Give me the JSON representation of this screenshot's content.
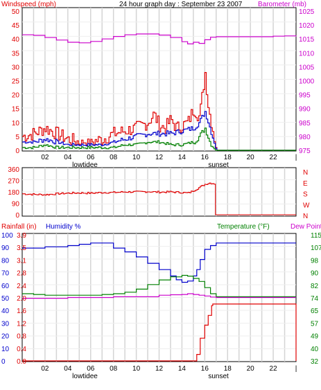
{
  "header": {
    "left": "Windspeed (mph)",
    "center": "24 hour graph day : September 23 2007",
    "right": "Barometer (mb)"
  },
  "colors": {
    "red": "#e00000",
    "blue": "#0000cc",
    "green": "#008000",
    "magenta": "#cc00cc",
    "grid": "#d4d4d4"
  },
  "chart_data": [
    {
      "type": "line",
      "x_ticks": [
        "02",
        "04",
        "06",
        "08",
        "10",
        "12",
        "14",
        "16",
        "18",
        "20",
        "22",
        "|"
      ],
      "x_markers": [
        "lowtidee",
        "sunset"
      ],
      "y_left": {
        "label": "Windspeed (mph)",
        "ticks": [
          0,
          5,
          10,
          15,
          20,
          25,
          30,
          35,
          40,
          45,
          50
        ],
        "range": [
          0,
          50
        ]
      },
      "y_right": {
        "label": "Barometer (mb)",
        "ticks": [
          975,
          980,
          985,
          990,
          995,
          1000,
          1005,
          1010,
          1015,
          1020,
          1025
        ],
        "range": [
          975,
          1025
        ]
      },
      "series": [
        {
          "axis": "right",
          "color": "magenta",
          "x": [
            0,
            1,
            2,
            3,
            4,
            5,
            6,
            7,
            8,
            9,
            10,
            11,
            12,
            13,
            14,
            14.5,
            15,
            15.5,
            16,
            16.5,
            17,
            18,
            19,
            20,
            21,
            22,
            23,
            24
          ],
          "y": [
            1016.5,
            1016.3,
            1015.5,
            1014.6,
            1013.8,
            1013.6,
            1014.1,
            1015.0,
            1015.9,
            1016.5,
            1016.8,
            1016.8,
            1016.4,
            1015.5,
            1014.0,
            1013.2,
            1013.8,
            1013.4,
            1014.7,
            1015.6,
            1015.8,
            1015.8,
            1015.8,
            1015.8,
            1015.8,
            1016.0,
            1016.1,
            1015.9
          ]
        },
        {
          "axis": "left",
          "color": "red",
          "x": [
            0,
            1,
            2,
            3,
            4,
            5,
            6,
            7,
            8,
            9,
            10,
            11,
            11.5,
            12,
            12.5,
            13,
            13.5,
            14,
            14.5,
            15,
            15.5,
            15.7,
            16,
            16.3,
            16.6,
            17,
            18,
            24
          ],
          "y": [
            5,
            6,
            8,
            6,
            4,
            3,
            3,
            4,
            6,
            7,
            8,
            10,
            13,
            9,
            8,
            11,
            8,
            9,
            10,
            15,
            12,
            18,
            28,
            15,
            9,
            0,
            0,
            0
          ]
        },
        {
          "axis": "left",
          "color": "blue",
          "x": [
            0,
            1,
            2,
            3,
            4,
            5,
            6,
            7,
            8,
            9,
            10,
            11,
            12,
            13,
            14,
            15,
            15.5,
            16,
            16.5,
            17,
            18,
            24
          ],
          "y": [
            3,
            3,
            4,
            3,
            2,
            2,
            2,
            2,
            3,
            4,
            5,
            6,
            6,
            6,
            7,
            8,
            10,
            14,
            7,
            0,
            0,
            0
          ]
        },
        {
          "axis": "left",
          "color": "green",
          "x": [
            0,
            1,
            2,
            3,
            4,
            5,
            6,
            7,
            8,
            9,
            10,
            11,
            12,
            13,
            14,
            15,
            15.5,
            16,
            16.5,
            17,
            18,
            24
          ],
          "y": [
            1,
            1,
            2,
            1,
            1,
            1,
            1,
            1,
            1,
            2,
            2,
            3,
            3,
            2,
            2,
            3,
            5,
            8,
            2,
            0,
            0,
            0
          ]
        }
      ]
    },
    {
      "type": "line",
      "y_left": {
        "ticks": [
          0,
          90,
          180,
          270,
          360
        ],
        "range": [
          0,
          360
        ]
      },
      "y_right": {
        "ticks": [
          "N",
          "W",
          "S",
          "E",
          "N"
        ]
      },
      "series": [
        {
          "axis": "left",
          "color": "red",
          "x": [
            0,
            1,
            2,
            3,
            4,
            5,
            6,
            7,
            8,
            9,
            10,
            11,
            12,
            13,
            14,
            14.5,
            15,
            15.5,
            16,
            16.4,
            16.8,
            16.9,
            24
          ],
          "y": [
            165,
            160,
            158,
            165,
            170,
            172,
            170,
            175,
            175,
            180,
            180,
            182,
            178,
            180,
            175,
            170,
            190,
            215,
            240,
            250,
            245,
            0,
            0
          ]
        }
      ]
    },
    {
      "type": "line",
      "legend": [
        "Rainfall (in)",
        "Humidity %",
        "Temperature (°F)",
        "Dew Point"
      ],
      "x_ticks": [
        "02",
        "04",
        "06",
        "08",
        "10",
        "12",
        "14",
        "16",
        "18",
        "20",
        "22",
        "|"
      ],
      "x_markers": [
        "lowtidee",
        "sunset"
      ],
      "y_humidity": {
        "ticks": [
          0,
          10,
          20,
          30,
          40,
          50,
          60,
          70,
          80,
          90,
          100
        ],
        "range": [
          0,
          100
        ]
      },
      "y_rain": {
        "ticks": [
          "0.0",
          "0.4",
          "0.8",
          "1.2",
          "1.6",
          "2.0",
          "2.4",
          "2.8",
          "3.1",
          "3.5",
          "3.9"
        ],
        "range": [
          0,
          3.9
        ]
      },
      "y_temp": {
        "ticks": [
          32,
          40,
          49,
          57,
          65,
          74,
          82,
          90,
          98,
          107,
          115
        ],
        "range": [
          32,
          115
        ]
      },
      "series": [
        {
          "name": "Humidity %",
          "axis": "humidity",
          "color": "blue",
          "x": [
            0,
            1,
            2,
            3,
            4,
            5,
            6,
            7,
            8,
            9,
            10,
            11,
            12,
            13,
            13.5,
            14,
            14.5,
            15,
            15.3,
            15.6,
            16,
            16.5,
            17,
            18,
            24
          ],
          "y": [
            89,
            89,
            90,
            90,
            91,
            92,
            93,
            93,
            89,
            86,
            82,
            77,
            72,
            67,
            64,
            62,
            63,
            67,
            72,
            80,
            88,
            91,
            93,
            93,
            93
          ]
        },
        {
          "name": "Temperature (°F)",
          "axis": "temp",
          "color": "green",
          "x": [
            0,
            1,
            2,
            3,
            4,
            5,
            6,
            7,
            8,
            9,
            10,
            11,
            12,
            13,
            14,
            14.5,
            15,
            15.5,
            16,
            16.5,
            17,
            18,
            24
          ],
          "y": [
            76,
            75.5,
            75,
            75,
            75,
            75,
            75,
            75.5,
            76,
            77,
            79,
            82,
            85,
            87,
            88,
            87.5,
            86,
            84,
            80,
            76,
            74,
            74,
            74
          ]
        },
        {
          "name": "Dew Point",
          "axis": "temp",
          "color": "magenta",
          "x": [
            0,
            2,
            4,
            6,
            8,
            10,
            12,
            13,
            14,
            14.5,
            15,
            15.5,
            16,
            16.5,
            17,
            18,
            24
          ],
          "y": [
            73,
            73,
            73.5,
            73.5,
            74,
            74,
            75,
            75.3,
            75.5,
            76,
            75.5,
            75,
            74.5,
            73.8,
            73.5,
            73.5,
            73.5
          ]
        },
        {
          "name": "Rainfall (in)",
          "axis": "rain",
          "color": "red",
          "x": [
            0,
            14,
            15,
            15.3,
            15.6,
            16,
            16.3,
            16.6,
            16.7,
            24,
            24
          ],
          "y": [
            0,
            0,
            0,
            0.2,
            0.7,
            1.1,
            1.4,
            1.7,
            1.75,
            1.75,
            0
          ]
        }
      ]
    }
  ]
}
